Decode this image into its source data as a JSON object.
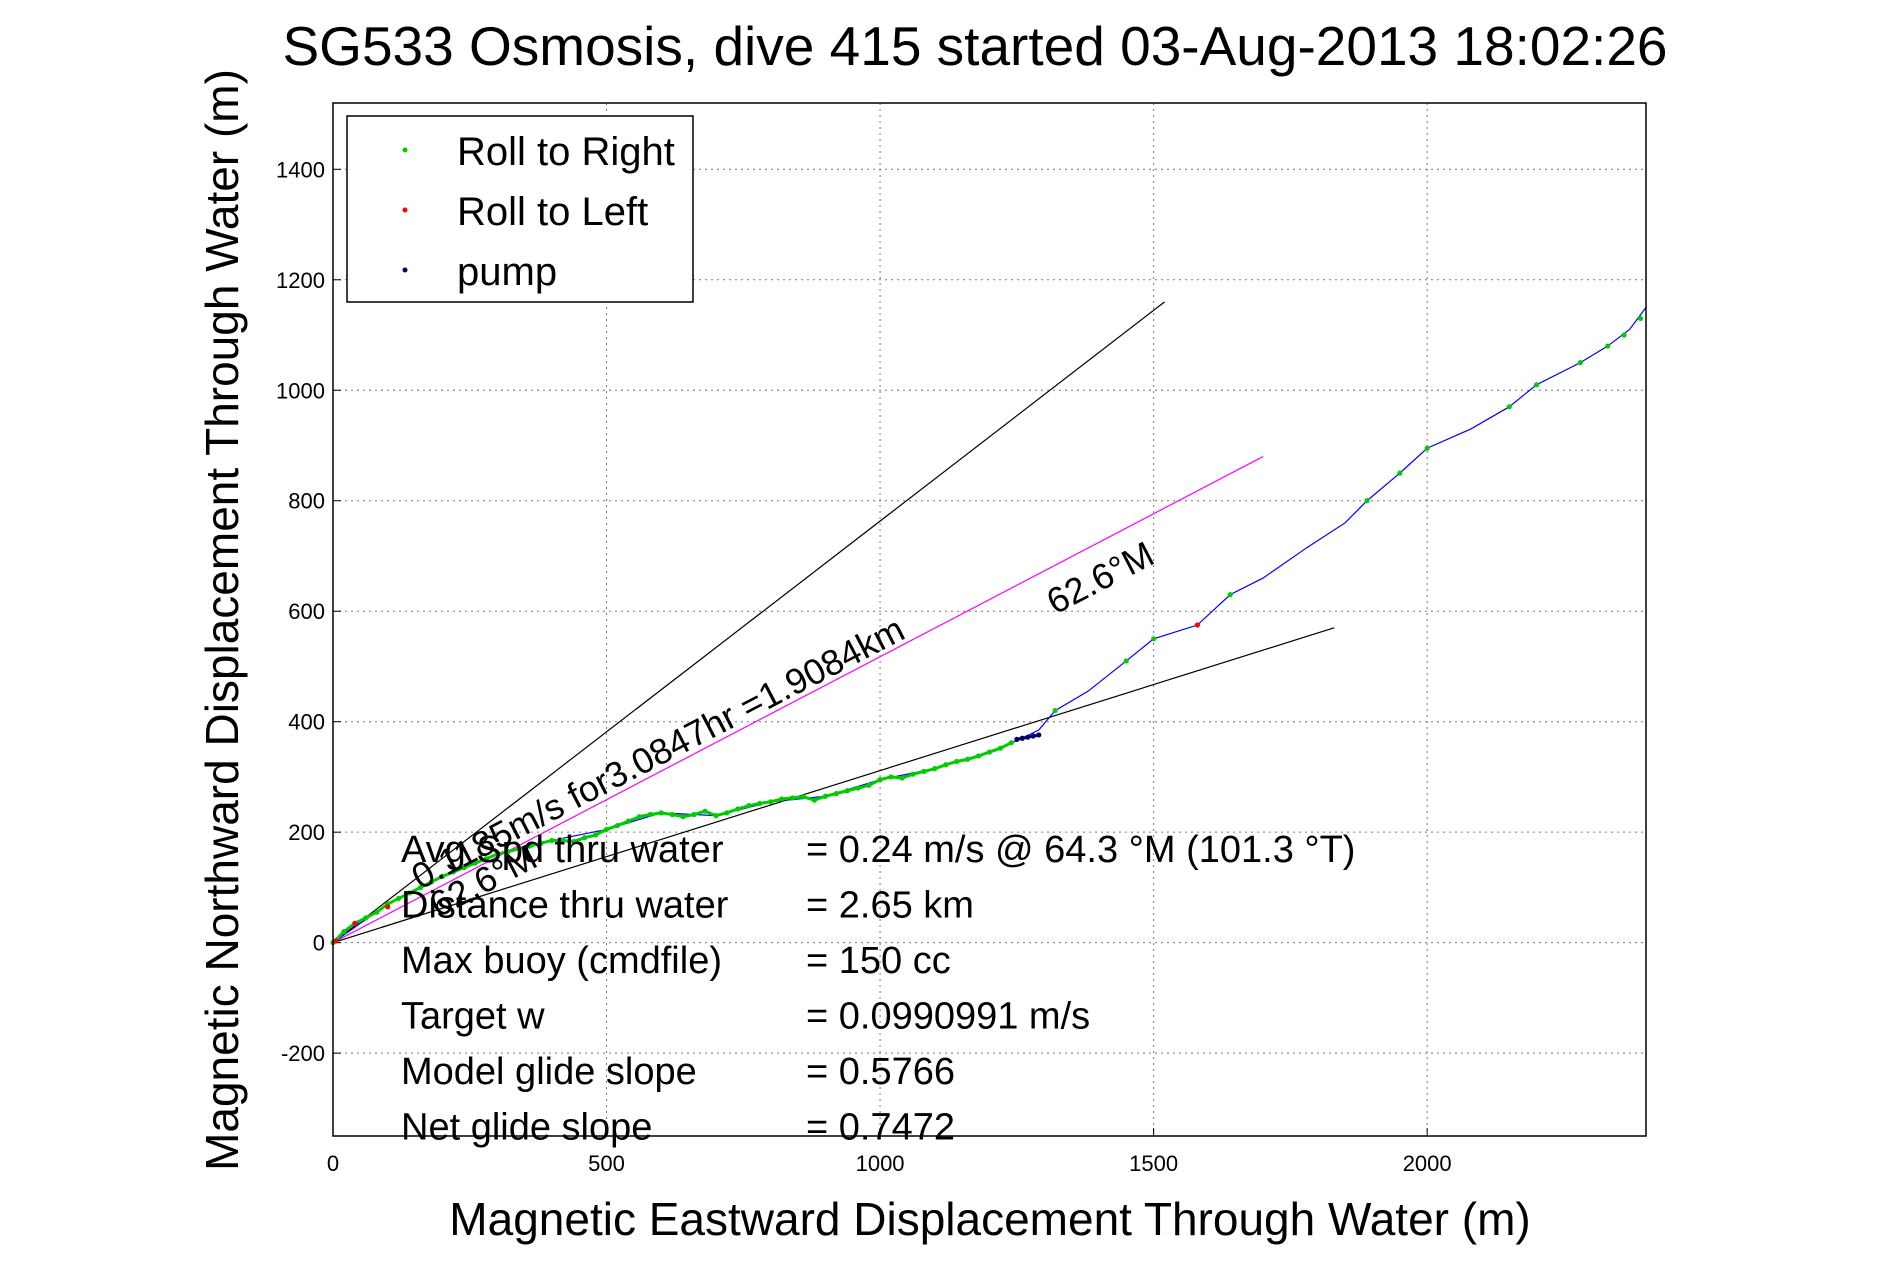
{
  "chart_data": {
    "type": "line",
    "title": "SG533 Osmosis, dive 415 started 03-Aug-2013 18:02:26",
    "xlabel": "Magnetic Eastward Displacement Through Water (m)",
    "ylabel": "Magnetic Northward Displacement Through Water (m)",
    "xlim": [
      0,
      2400
    ],
    "ylim": [
      -350,
      1520
    ],
    "xticks": [
      0,
      500,
      1000,
      1500,
      2000
    ],
    "yticks": [
      -200,
      0,
      200,
      400,
      600,
      800,
      1000,
      1200,
      1400
    ],
    "grid": true,
    "legend_position": "top-left",
    "legend": [
      {
        "label": "Roll to Right",
        "color": "#00cc00"
      },
      {
        "label": "Roll to Left",
        "color": "#ff0000"
      },
      {
        "label": "pump",
        "color": "#000066"
      }
    ],
    "track": {
      "color": "#0000ff",
      "x": [
        0,
        100,
        200,
        300,
        400,
        500,
        600,
        700,
        800,
        900,
        1000,
        1100,
        1200,
        1260,
        1290,
        1320,
        1380,
        1450,
        1500,
        1580,
        1640,
        1700,
        1780,
        1850,
        1890,
        1950,
        2000,
        2080,
        2150,
        2200,
        2280,
        2330,
        2370,
        2400
      ],
      "y": [
        0,
        70,
        120,
        160,
        185,
        205,
        235,
        230,
        255,
        265,
        295,
        315,
        345,
        370,
        385,
        420,
        455,
        510,
        550,
        575,
        630,
        660,
        715,
        760,
        800,
        850,
        895,
        930,
        970,
        1010,
        1050,
        1080,
        1110,
        1150
      ]
    },
    "series": [
      {
        "name": "Roll to Right",
        "color": "#00cc00",
        "x": [
          0,
          20,
          40,
          60,
          80,
          100,
          120,
          140,
          160,
          180,
          200,
          220,
          240,
          260,
          280,
          300,
          320,
          340,
          360,
          380,
          400,
          420,
          440,
          460,
          480,
          500,
          520,
          540,
          560,
          580,
          600,
          620,
          640,
          660,
          680,
          700,
          720,
          740,
          760,
          780,
          800,
          820,
          840,
          860,
          880,
          900,
          920,
          940,
          960,
          980,
          1000,
          1020,
          1040,
          1060,
          1080,
          1100,
          1120,
          1140,
          1160,
          1180,
          1200,
          1220,
          1240,
          1320,
          1450,
          1500,
          1640,
          1890,
          1950,
          2000,
          2150,
          2200,
          2280,
          2330,
          2360,
          2390
        ],
        "y": [
          0,
          20,
          35,
          45,
          55,
          70,
          80,
          90,
          100,
          110,
          120,
          128,
          136,
          144,
          152,
          160,
          165,
          170,
          175,
          180,
          185,
          185,
          183,
          190,
          195,
          205,
          212,
          220,
          228,
          232,
          235,
          232,
          228,
          232,
          238,
          230,
          235,
          242,
          248,
          252,
          255,
          260,
          262,
          264,
          258,
          265,
          270,
          275,
          280,
          285,
          295,
          300,
          298,
          305,
          310,
          315,
          322,
          328,
          332,
          338,
          345,
          352,
          362,
          420,
          510,
          550,
          630,
          800,
          850,
          895,
          970,
          1010,
          1050,
          1080,
          1100,
          1130
        ]
      },
      {
        "name": "Roll to Left",
        "color": "#ff0000",
        "x": [
          5,
          40,
          100,
          1580
        ],
        "y": [
          3,
          35,
          65,
          575
        ]
      },
      {
        "name": "pump",
        "color": "#000066",
        "x": [
          1250,
          1260,
          1270,
          1280,
          1290
        ],
        "y": [
          368,
          370,
          372,
          374,
          376
        ]
      }
    ],
    "reference_lines": [
      {
        "color": "#000000",
        "x": [
          0,
          1520
        ],
        "y": [
          0,
          1160
        ]
      },
      {
        "color": "#ff00ff",
        "x": [
          0,
          1700
        ],
        "y": [
          0,
          880
        ]
      },
      {
        "color": "#000000",
        "x": [
          0,
          1830
        ],
        "y": [
          0,
          570
        ]
      }
    ],
    "annotations": {
      "main_line": "0.1185m/s for3.0847hr =1.9084km",
      "heading_upper": "62.6°M",
      "heading_lower": "62.6°M"
    },
    "stats": [
      {
        "label": "Avg Spd thru water",
        "value": "=  0.24 m/s @  64.3 °M (101.3 °T)"
      },
      {
        "label": "Distance thru water",
        "value": "=  2.65 km"
      },
      {
        "label": "Max buoy (cmdfile)",
        "value": "= 150 cc"
      },
      {
        "label": "Target w",
        "value": "= 0.0990991 m/s"
      },
      {
        "label": "Model glide slope",
        "value": "= 0.5766"
      },
      {
        "label": "Net glide slope",
        "value": "= 0.7472"
      }
    ]
  }
}
